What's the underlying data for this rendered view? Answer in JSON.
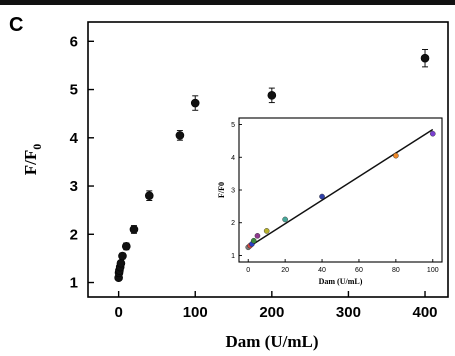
{
  "panel_label": "C",
  "chart_data": [
    {
      "type": "scatter",
      "xlabel": "Dam (U/mL)",
      "ylabel_base": "F/F",
      "ylabel_sub": "0",
      "xlim": [
        -40,
        430
      ],
      "ylim": [
        0.7,
        6.4
      ],
      "xticks": [
        0,
        100,
        200,
        300,
        400
      ],
      "xtick_labels": [
        "0",
        "100",
        "200",
        "300",
        "400"
      ],
      "yticks": [
        1,
        2,
        3,
        4,
        5,
        6
      ],
      "ytick_labels": [
        "1",
        "2",
        "3",
        "4",
        "5",
        "6"
      ],
      "marker_color": "#111111",
      "points": [
        {
          "x": 0,
          "y": 1.1,
          "err": 0.05
        },
        {
          "x": 0.5,
          "y": 1.2,
          "err": 0.05
        },
        {
          "x": 1,
          "y": 1.25,
          "err": 0.05
        },
        {
          "x": 2,
          "y": 1.32,
          "err": 0.05
        },
        {
          "x": 3,
          "y": 1.4,
          "err": 0.05
        },
        {
          "x": 5,
          "y": 1.55,
          "err": 0.06
        },
        {
          "x": 10,
          "y": 1.75,
          "err": 0.07
        },
        {
          "x": 20,
          "y": 2.1,
          "err": 0.08
        },
        {
          "x": 40,
          "y": 2.8,
          "err": 0.1
        },
        {
          "x": 80,
          "y": 4.05,
          "err": 0.1
        },
        {
          "x": 100,
          "y": 4.72,
          "err": 0.15
        },
        {
          "x": 200,
          "y": 4.88,
          "err": 0.15
        },
        {
          "x": 400,
          "y": 5.65,
          "err": 0.18
        }
      ]
    },
    {
      "type": "scatter",
      "role": "inset",
      "xlabel": "Dam (U/mL)",
      "ylabel": "F/F0",
      "xlim": [
        -5,
        105
      ],
      "ylim": [
        0.8,
        5.2
      ],
      "xticks": [
        0,
        20,
        40,
        60,
        80,
        100
      ],
      "xtick_labels": [
        "0",
        "20",
        "40",
        "60",
        "80",
        "100"
      ],
      "yticks": [
        1,
        2,
        3,
        4,
        5
      ],
      "ytick_labels": [
        "1",
        "2",
        "3",
        "4",
        "5"
      ],
      "fit_line": {
        "x": [
          0,
          100
        ],
        "y": [
          1.25,
          4.85
        ],
        "color": "#111111"
      },
      "points": [
        {
          "x": 0,
          "y": 1.25,
          "color": "#7a7a7a"
        },
        {
          "x": 1,
          "y": 1.3,
          "color": "#d4463f"
        },
        {
          "x": 2,
          "y": 1.35,
          "color": "#2a3fc4"
        },
        {
          "x": 3,
          "y": 1.45,
          "color": "#3b8a3b"
        },
        {
          "x": 5,
          "y": 1.6,
          "color": "#8e3a8e"
        },
        {
          "x": 10,
          "y": 1.75,
          "color": "#b8b22a"
        },
        {
          "x": 20,
          "y": 2.1,
          "color": "#47a89a"
        },
        {
          "x": 40,
          "y": 2.8,
          "color": "#2f3fa8"
        },
        {
          "x": 80,
          "y": 4.05,
          "color": "#f08a2a"
        },
        {
          "x": 100,
          "y": 4.72,
          "color": "#7a3fd0"
        }
      ]
    }
  ]
}
